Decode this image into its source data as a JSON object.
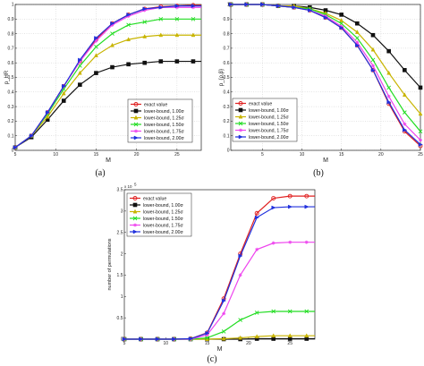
{
  "chart_data": [
    {
      "type": "line",
      "caption": "(a)",
      "xlabel": "M",
      "ylabel": "p_HR",
      "xlim": [
        5,
        28
      ],
      "ylim": [
        0,
        1
      ],
      "xticks": [
        5,
        10,
        15,
        20,
        25
      ],
      "yticks": [
        0,
        0.1,
        0.2,
        0.3,
        0.4,
        0.5,
        0.6,
        0.7,
        0.8,
        0.9,
        1
      ],
      "grid": true,
      "legend_position": "bottom-right",
      "x": [
        5,
        7,
        9,
        11,
        13,
        15,
        17,
        19,
        21,
        23,
        25,
        27,
        28
      ],
      "series": [
        {
          "name": "exact value",
          "color": "#e02020",
          "marker": "circle",
          "values": [
            0.02,
            0.1,
            0.26,
            0.44,
            0.61,
            0.76,
            0.87,
            0.93,
            0.97,
            0.985,
            0.99,
            0.995,
            0.995
          ]
        },
        {
          "name": "lower-bound, 1.00σ",
          "color": "#111111",
          "marker": "square",
          "values": [
            0.02,
            0.09,
            0.21,
            0.34,
            0.45,
            0.53,
            0.57,
            0.59,
            0.6,
            0.61,
            0.61,
            0.61,
            0.61
          ]
        },
        {
          "name": "lower-bound, 1.25σ",
          "color": "#c8b400",
          "marker": "triangle",
          "values": [
            0.02,
            0.1,
            0.23,
            0.39,
            0.53,
            0.65,
            0.72,
            0.76,
            0.78,
            0.79,
            0.79,
            0.79,
            0.79
          ]
        },
        {
          "name": "lower-bound, 1.50σ",
          "color": "#22dd22",
          "marker": "x",
          "values": [
            0.02,
            0.1,
            0.25,
            0.42,
            0.58,
            0.71,
            0.8,
            0.86,
            0.88,
            0.9,
            0.9,
            0.9,
            0.9
          ]
        },
        {
          "name": "lower-bound, 1.75σ",
          "color": "#ee44ee",
          "marker": "star",
          "values": [
            0.02,
            0.1,
            0.26,
            0.44,
            0.61,
            0.75,
            0.86,
            0.92,
            0.96,
            0.98,
            0.98,
            0.98,
            0.98
          ]
        },
        {
          "name": "lower-bound, 2.00σ",
          "color": "#2030dd",
          "marker": "triangle-right",
          "values": [
            0.02,
            0.1,
            0.26,
            0.44,
            0.62,
            0.77,
            0.87,
            0.93,
            0.97,
            0.98,
            0.99,
            0.99,
            0.99
          ]
        }
      ]
    },
    {
      "type": "line",
      "caption": "(b)",
      "xlabel": "M",
      "ylabel": "p_{ρ,β}",
      "xlim": [
        1,
        25
      ],
      "ylim": [
        0,
        1
      ],
      "xticks": [
        5,
        10,
        15,
        20,
        25
      ],
      "yticks": [
        0,
        0.1,
        0.2,
        0.3,
        0.4,
        0.5,
        0.6,
        0.7,
        0.8,
        0.9,
        1
      ],
      "grid": true,
      "legend_position": "bottom-left",
      "x": [
        1,
        3,
        5,
        7,
        9,
        11,
        13,
        15,
        17,
        19,
        21,
        23,
        25
      ],
      "series": [
        {
          "name": "exact value",
          "color": "#e02020",
          "marker": "circle",
          "values": [
            1.0,
            1.0,
            1.0,
            0.99,
            0.98,
            0.96,
            0.91,
            0.84,
            0.72,
            0.55,
            0.32,
            0.13,
            0.03
          ]
        },
        {
          "name": "lower-bound, 1.00σ",
          "color": "#111111",
          "marker": "square",
          "values": [
            1.0,
            1.0,
            1.0,
            0.99,
            0.99,
            0.98,
            0.96,
            0.93,
            0.87,
            0.79,
            0.68,
            0.55,
            0.43
          ]
        },
        {
          "name": "lower-bound, 1.25σ",
          "color": "#c8b400",
          "marker": "triangle",
          "values": [
            1.0,
            1.0,
            1.0,
            0.99,
            0.99,
            0.97,
            0.94,
            0.89,
            0.81,
            0.69,
            0.53,
            0.38,
            0.25
          ]
        },
        {
          "name": "lower-bound, 1.50σ",
          "color": "#22dd22",
          "marker": "x",
          "values": [
            1.0,
            1.0,
            1.0,
            0.99,
            0.98,
            0.97,
            0.93,
            0.87,
            0.77,
            0.62,
            0.43,
            0.26,
            0.13
          ]
        },
        {
          "name": "lower-bound, 1.75σ",
          "color": "#ee44ee",
          "marker": "star",
          "values": [
            1.0,
            1.0,
            1.0,
            0.99,
            0.98,
            0.96,
            0.92,
            0.85,
            0.74,
            0.58,
            0.37,
            0.18,
            0.07
          ]
        },
        {
          "name": "lower-bound, 2.00σ",
          "color": "#2030dd",
          "marker": "triangle-right",
          "values": [
            1.0,
            1.0,
            1.0,
            0.99,
            0.98,
            0.96,
            0.91,
            0.84,
            0.72,
            0.55,
            0.33,
            0.14,
            0.04
          ]
        }
      ]
    },
    {
      "type": "line",
      "caption": "(c)",
      "xlabel": "M",
      "ylabel": "number of permutations",
      "y_multiplier": "x 10",
      "y_multiplier_exp": "5",
      "xlim": [
        5,
        28
      ],
      "ylim": [
        0,
        3.5
      ],
      "xticks": [
        5,
        10,
        15,
        20,
        25
      ],
      "yticks": [
        0,
        0.5,
        1,
        1.5,
        2,
        2.5,
        3,
        3.5
      ],
      "grid": false,
      "legend_position": "top-left",
      "x": [
        5,
        7,
        9,
        11,
        13,
        15,
        17,
        19,
        21,
        23,
        25,
        27,
        28
      ],
      "series": [
        {
          "name": "exact value",
          "color": "#e02020",
          "marker": "circle",
          "values": [
            0,
            0,
            0,
            0,
            0.01,
            0.15,
            0.95,
            2.0,
            2.95,
            3.3,
            3.35,
            3.35,
            3.35
          ]
        },
        {
          "name": "lower-bound, 1.00σ",
          "color": "#111111",
          "marker": "square",
          "values": [
            0,
            0,
            0,
            0,
            0,
            0,
            0,
            0,
            0.01,
            0.01,
            0.01,
            0.01,
            0.01
          ]
        },
        {
          "name": "lower-bound, 1.25σ",
          "color": "#c8b400",
          "marker": "triangle",
          "values": [
            0,
            0,
            0,
            0,
            0,
            0,
            0.01,
            0.03,
            0.06,
            0.08,
            0.08,
            0.08,
            0.08
          ]
        },
        {
          "name": "lower-bound, 1.50σ",
          "color": "#22dd22",
          "marker": "x",
          "values": [
            0,
            0,
            0,
            0,
            0,
            0.03,
            0.18,
            0.45,
            0.62,
            0.65,
            0.65,
            0.65,
            0.65
          ]
        },
        {
          "name": "lower-bound, 1.75σ",
          "color": "#ee44ee",
          "marker": "star",
          "values": [
            0,
            0,
            0,
            0,
            0,
            0.1,
            0.6,
            1.5,
            2.1,
            2.25,
            2.27,
            2.27,
            2.27
          ]
        },
        {
          "name": "lower-bound, 2.00σ",
          "color": "#2030dd",
          "marker": "triangle-right",
          "values": [
            0,
            0,
            0,
            0,
            0.01,
            0.14,
            0.9,
            1.95,
            2.85,
            3.08,
            3.1,
            3.1,
            3.1
          ]
        }
      ]
    }
  ]
}
